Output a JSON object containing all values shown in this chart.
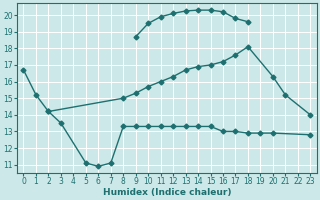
{
  "xlabel": "Humidex (Indice chaleur)",
  "bg_color": "#cce8e8",
  "line_color": "#1e7070",
  "grid_color": "#ffffff",
  "xlim": [
    -0.5,
    23.5
  ],
  "ylim": [
    10.5,
    20.7
  ],
  "yticks": [
    11,
    12,
    13,
    14,
    15,
    16,
    17,
    18,
    19,
    20
  ],
  "xticks": [
    0,
    1,
    2,
    3,
    4,
    5,
    6,
    7,
    8,
    9,
    10,
    11,
    12,
    13,
    14,
    15,
    16,
    17,
    18,
    19,
    20,
    21,
    22,
    23
  ],
  "series1_x": [
    0,
    1,
    2,
    3,
    5,
    6,
    7,
    8,
    9,
    10,
    11,
    12,
    13,
    14,
    15,
    16,
    17,
    18,
    19,
    20,
    23
  ],
  "series1_y": [
    16.7,
    15.2,
    14.2,
    13.5,
    11.1,
    10.9,
    11.1,
    13.3,
    13.3,
    13.3,
    13.3,
    13.3,
    13.3,
    13.3,
    13.3,
    13.0,
    13.0,
    12.9,
    12.9,
    12.9,
    12.8
  ],
  "series2_x": [
    2,
    8,
    9,
    10,
    11,
    12,
    13,
    14,
    15,
    16,
    17,
    18,
    20,
    21,
    23
  ],
  "series2_y": [
    14.2,
    15.0,
    15.3,
    15.7,
    16.0,
    16.3,
    16.7,
    16.9,
    17.0,
    17.2,
    17.6,
    18.1,
    16.3,
    15.2,
    14.0
  ],
  "series3_x": [
    9,
    10,
    11,
    12,
    13,
    14,
    15,
    16,
    17,
    18
  ],
  "series3_y": [
    18.7,
    19.5,
    19.9,
    20.1,
    20.25,
    20.3,
    20.3,
    20.2,
    19.8,
    19.6
  ],
  "tick_fontsize": 5.5,
  "xlabel_fontsize": 6.5,
  "linewidth": 1.0,
  "markersize": 2.5
}
